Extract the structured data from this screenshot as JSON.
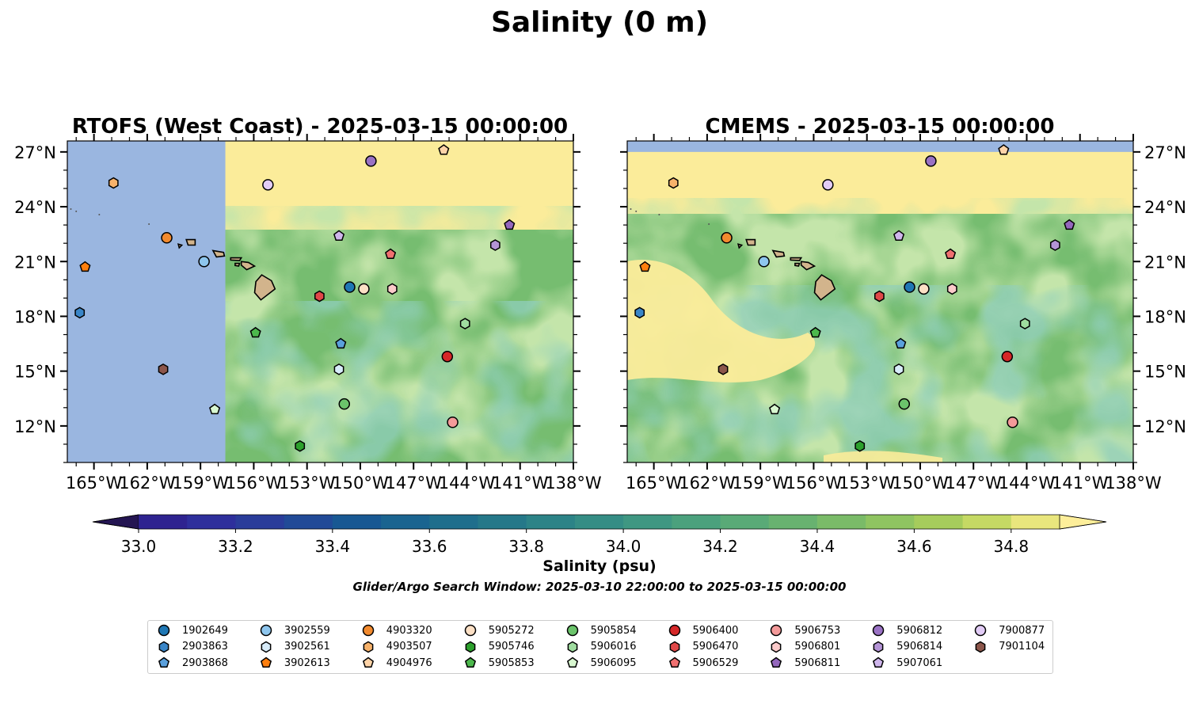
{
  "figure": {
    "suptitle": "Salinity (0 m)",
    "colorbar_label": "Salinity (psu)",
    "search_window": "Glider/Argo Search Window: 2025-03-10 22:00:00 to 2025-03-15 00:00:00"
  },
  "colors": {
    "land": "#d2b48c",
    "ocean_masked": "#9ab6e0",
    "legend_border": "#cccccc"
  },
  "chart_data": {
    "type": "map",
    "panels": [
      {
        "title": "RTOFS (West Coast) - 2025-03-15 00:00:00",
        "lat_axis_side": "left",
        "masked_west_of_lon": -157.6,
        "masked_north_of_lat": 27.6,
        "edge_salinity": 34.85
      },
      {
        "title": "CMEMS - 2025-03-15 00:00:00",
        "lat_axis_side": "right",
        "masked_north_of_lat": 27.0,
        "edge_salinity": 34.85
      }
    ],
    "extent": {
      "lon": [
        -166.5,
        -138.0
      ],
      "lat": [
        10.0,
        27.6
      ]
    },
    "lon_ticks": [
      -165,
      -162,
      -159,
      -156,
      -153,
      -150,
      -147,
      -144,
      -141,
      -138
    ],
    "lon_tick_labels": [
      "165°W",
      "162°W",
      "159°W",
      "156°W",
      "153°W",
      "150°W",
      "147°W",
      "144°W",
      "141°W",
      "138°W"
    ],
    "lat_ticks": [
      12,
      15,
      18,
      21,
      24,
      27
    ],
    "lat_tick_labels": [
      "12°N",
      "15°N",
      "18°N",
      "21°N",
      "24°N",
      "27°N"
    ],
    "colorbar": {
      "range": [
        32.9,
        34.9
      ],
      "levels": [
        32.9,
        33.0,
        33.1,
        33.2,
        33.3,
        33.4,
        33.5,
        33.6,
        33.7,
        33.8,
        33.9,
        34.0,
        34.1,
        34.2,
        34.3,
        34.4,
        34.5,
        34.6,
        34.7,
        34.8,
        34.9
      ],
      "colors": [
        "#2a1b6b",
        "#2e2390",
        "#2e2f9c",
        "#2a3c9a",
        "#214a97",
        "#185893",
        "#1a6490",
        "#1f6e8c",
        "#257889",
        "#2c8387",
        "#358d85",
        "#3f9782",
        "#4ba17d",
        "#59aa77",
        "#68b270",
        "#7abb68",
        "#8fc461",
        "#a6cc5c",
        "#c5d964",
        "#e9e67d"
      ],
      "extend_low_color": "#241552",
      "extend_high_color": "#fdee9a",
      "tick_values": [
        33.0,
        33.2,
        33.4,
        33.6,
        33.8,
        34.0,
        34.2,
        34.4,
        34.6,
        34.8
      ],
      "tick_labels": [
        "33.0",
        "33.2",
        "33.4",
        "33.6",
        "33.8",
        "34.0",
        "34.2",
        "34.4",
        "34.6",
        "34.8"
      ]
    },
    "profiles": [
      {
        "id": "1902649",
        "marker": "circle",
        "color": "#1f77b4",
        "lon": -150.6,
        "lat": 19.6
      },
      {
        "id": "2903863",
        "marker": "hexagon",
        "color": "#3a86c8",
        "lon": -165.8,
        "lat": 18.2
      },
      {
        "id": "2903868",
        "marker": "pentagon",
        "color": "#5aa0dc",
        "lon": -151.1,
        "lat": 16.5
      },
      {
        "id": "3902559",
        "marker": "circle",
        "color": "#8ec6ee",
        "lon": -158.8,
        "lat": 21.0
      },
      {
        "id": "3902561",
        "marker": "hexagon",
        "color": "#d8ecfa",
        "lon": -151.2,
        "lat": 15.1
      },
      {
        "id": "3902613",
        "marker": "pentagon",
        "color": "#ff7f0e",
        "lon": -165.5,
        "lat": 20.7
      },
      {
        "id": "4903320",
        "marker": "circle",
        "color": "#f28a2e",
        "lon": -160.9,
        "lat": 22.3
      },
      {
        "id": "4903507",
        "marker": "hexagon",
        "color": "#f7b26b",
        "lon": -163.9,
        "lat": 25.3
      },
      {
        "id": "4904976",
        "marker": "pentagon",
        "color": "#ffd4a8",
        "lon": -145.3,
        "lat": 27.1
      },
      {
        "id": "5905272",
        "marker": "circle",
        "color": "#fde0c5",
        "lon": -149.8,
        "lat": 19.5
      },
      {
        "id": "5905746",
        "marker": "hexagon",
        "color": "#2ca02c",
        "lon": -153.4,
        "lat": 10.9
      },
      {
        "id": "5905853",
        "marker": "pentagon",
        "color": "#4cb84c",
        "lon": -155.9,
        "lat": 17.1
      },
      {
        "id": "5905854",
        "marker": "circle",
        "color": "#6bc46b",
        "lon": -150.9,
        "lat": 13.2
      },
      {
        "id": "5906016",
        "marker": "hexagon",
        "color": "#9fdc9f",
        "lon": -144.1,
        "lat": 17.6
      },
      {
        "id": "5906095",
        "marker": "pentagon",
        "color": "#d8f7d0",
        "lon": -158.2,
        "lat": 12.9
      },
      {
        "id": "5906400",
        "marker": "circle",
        "color": "#d62728",
        "lon": -145.1,
        "lat": 15.8
      },
      {
        "id": "5906470",
        "marker": "hexagon",
        "color": "#e04848",
        "lon": -152.3,
        "lat": 19.1
      },
      {
        "id": "5906529",
        "marker": "pentagon",
        "color": "#f07070",
        "lon": -148.3,
        "lat": 21.4
      },
      {
        "id": "5906753",
        "marker": "circle",
        "color": "#f49a9a",
        "lon": -144.8,
        "lat": 12.2
      },
      {
        "id": "5906801",
        "marker": "hexagon",
        "color": "#fbcaca",
        "lon": -148.2,
        "lat": 19.5
      },
      {
        "id": "5906811",
        "marker": "pentagon",
        "color": "#9467bd",
        "lon": -141.6,
        "lat": 23.0
      },
      {
        "id": "5906812",
        "marker": "circle",
        "color": "#9a72c4",
        "lon": -149.4,
        "lat": 26.5
      },
      {
        "id": "5906814",
        "marker": "hexagon",
        "color": "#b494d6",
        "lon": -142.4,
        "lat": 21.9
      },
      {
        "id": "5907061",
        "marker": "pentagon",
        "color": "#cfb6ec",
        "lon": -151.2,
        "lat": 22.4
      },
      {
        "id": "7900877",
        "marker": "circle",
        "color": "#e2ccf6",
        "lon": -155.2,
        "lat": 25.2
      },
      {
        "id": "7901104",
        "marker": "hexagon",
        "color": "#8c564b",
        "lon": -161.1,
        "lat": 15.1
      }
    ]
  }
}
